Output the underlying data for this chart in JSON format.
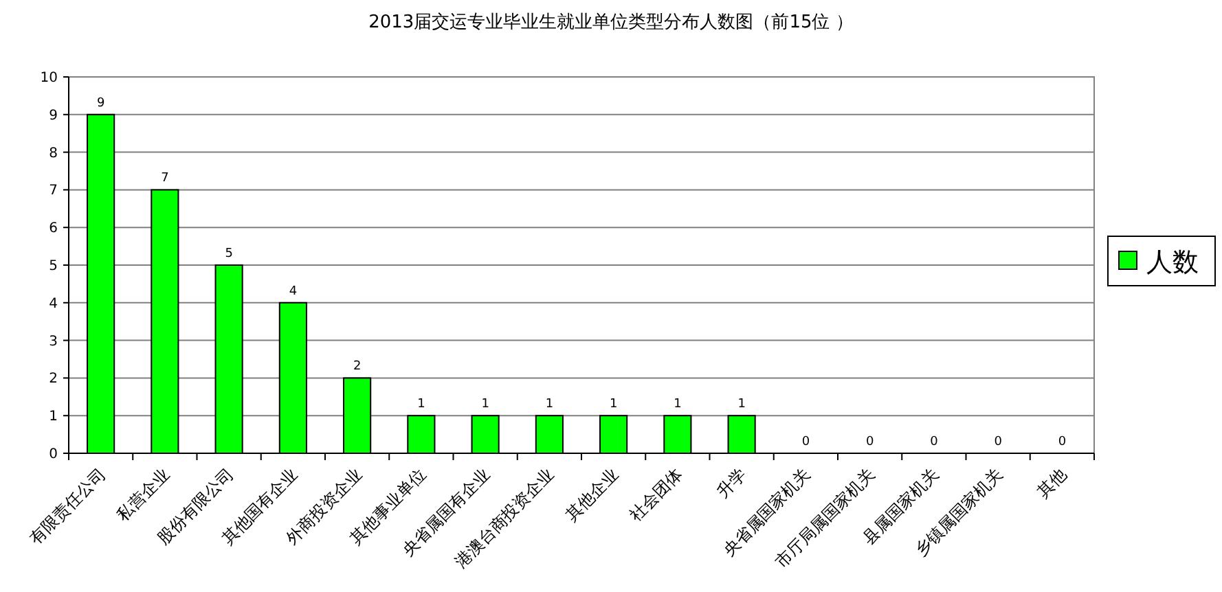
{
  "chart_data": {
    "type": "bar",
    "title": "2013届交运专业毕业生就业单位类型分布人数图（前15位 ）",
    "categories": [
      "有限责任公司",
      "私营企业",
      "股份有限公司",
      "其他国有企业",
      "外商投资企业",
      "其他事业单位",
      "央省属国有企业",
      "港澳台商投资企业",
      "其他企业",
      "社会团体",
      "升学",
      "央省属国家机关",
      "市厅局属国家机关",
      "县属国家机关",
      "乡镇属国家机关",
      "其他"
    ],
    "series": [
      {
        "name": "人数",
        "color": "#00ff00",
        "values": [
          9,
          7,
          5,
          4,
          2,
          1,
          1,
          1,
          1,
          1,
          1,
          0,
          0,
          0,
          0,
          0
        ]
      }
    ],
    "ylim": [
      0,
      10
    ],
    "yticks": [
      0,
      1,
      2,
      3,
      4,
      5,
      6,
      7,
      8,
      9,
      10
    ],
    "grid": "y",
    "legend": "right",
    "data_labels": true
  }
}
